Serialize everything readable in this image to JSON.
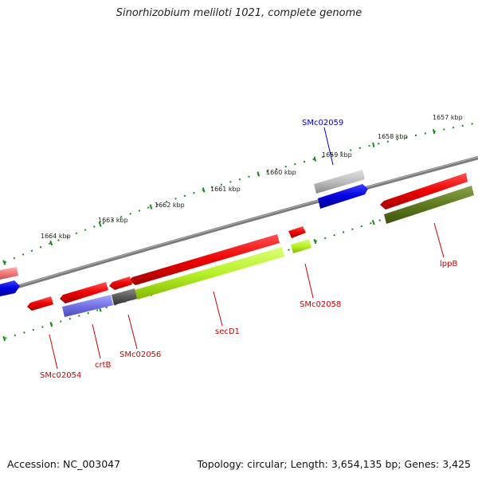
{
  "map": {
    "title": "Sinorhizobium meliloti 1021, complete genome",
    "accession": "Accession: NC_003047",
    "topology": "Topology: circular; Length: 3,654,135 bp; Genes: 3,425"
  },
  "colors": {
    "backbone": "#808080",
    "tick_mark": "#1a8a1a",
    "label_red": "#cc0000",
    "label_blue": "#0000cc"
  },
  "scale_ticks": [
    {
      "label": "1664 kbp"
    },
    {
      "label": "1663 kbp"
    },
    {
      "label": "1662 kbp"
    },
    {
      "label": "1661 kbp"
    },
    {
      "label": "1660 kbp"
    },
    {
      "label": "1659 kbp"
    },
    {
      "label": "1658 kbp"
    },
    {
      "label": "1657 kbp"
    }
  ],
  "gene_labels": [
    {
      "name": "SMc02059",
      "color": "#0000cc"
    },
    {
      "name": "lppB",
      "color": "#cc0000"
    },
    {
      "name": "SMc02058",
      "color": "#cc0000"
    },
    {
      "name": "secD1",
      "color": "#cc0000"
    },
    {
      "name": "SMc02056",
      "color": "#cc0000"
    },
    {
      "name": "crtB",
      "color": "#cc0000"
    },
    {
      "name": "SMc02054",
      "color": "#cc0000"
    }
  ]
}
